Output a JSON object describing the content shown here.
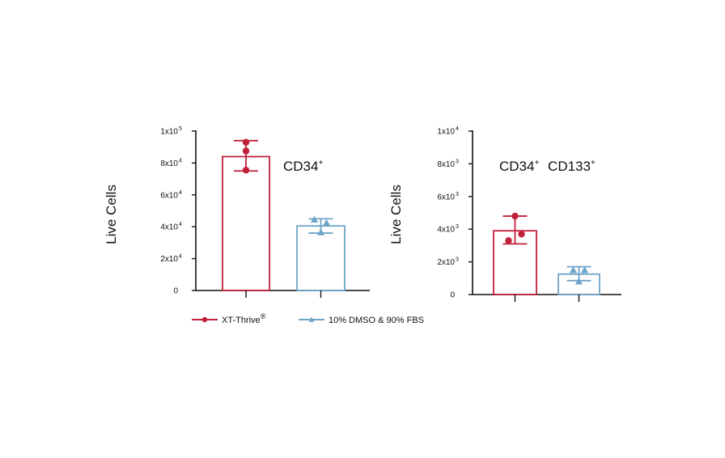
{
  "colors": {
    "xt_thrive": "#c0203a",
    "dmso_fbs": "#6fa4c8",
    "axis": "#111111"
  },
  "legend": {
    "placement": "bottom",
    "items": [
      {
        "label": "XT-Thrive",
        "superscript": "®",
        "marker": "circle",
        "color": "#c0203a"
      },
      {
        "label": "10% DMSO & 90% FBS",
        "superscript": "",
        "marker": "triangle",
        "color": "#6fa4c8"
      }
    ]
  },
  "chart_data": [
    {
      "type": "bar",
      "annotation": {
        "text": "CD34",
        "superscript": "+"
      },
      "ylabel": "Live Cells",
      "ylim": [
        0,
        100000
      ],
      "yticks": [
        {
          "value": 0,
          "mantissa": "0",
          "exponent": ""
        },
        {
          "value": 20000,
          "mantissa": "2x10",
          "exponent": "4"
        },
        {
          "value": 40000,
          "mantissa": "4x10",
          "exponent": "4"
        },
        {
          "value": 60000,
          "mantissa": "6x10",
          "exponent": "4"
        },
        {
          "value": 80000,
          "mantissa": "8x10",
          "exponent": "4"
        },
        {
          "value": 100000,
          "mantissa": "1x10",
          "exponent": "5"
        }
      ],
      "grid": false,
      "series": [
        {
          "name": "XT-Thrive®",
          "mean": 84000,
          "error": [
            75000,
            94000
          ],
          "points": [
            93000,
            87500,
            75500
          ],
          "marker": "circle",
          "color": "#c0203a"
        },
        {
          "name": "10% DMSO & 90% FBS",
          "mean": 40500,
          "error": [
            36000,
            45000
          ],
          "points": [
            44500,
            42500,
            36500
          ],
          "marker": "triangle",
          "color": "#6fa4c8"
        }
      ]
    },
    {
      "type": "bar",
      "annotation": {
        "text": "CD34",
        "superscript": "+",
        "text2": "CD133",
        "superscript2": "+"
      },
      "ylabel": "Live Cells",
      "ylim": [
        0,
        10000
      ],
      "yticks": [
        {
          "value": 0,
          "mantissa": "0",
          "exponent": ""
        },
        {
          "value": 2000,
          "mantissa": "2x10",
          "exponent": "3"
        },
        {
          "value": 4000,
          "mantissa": "4x10",
          "exponent": "3"
        },
        {
          "value": 6000,
          "mantissa": "6x10",
          "exponent": "3"
        },
        {
          "value": 8000,
          "mantissa": "8x10",
          "exponent": "3"
        },
        {
          "value": 10000,
          "mantissa": "1x10",
          "exponent": "4"
        }
      ],
      "grid": false,
      "series": [
        {
          "name": "XT-Thrive®",
          "mean": 3900,
          "error": [
            3100,
            4800
          ],
          "points": [
            4800,
            3700,
            3300
          ],
          "marker": "circle",
          "color": "#c0203a"
        },
        {
          "name": "10% DMSO & 90% FBS",
          "mean": 1250,
          "error": [
            850,
            1700
          ],
          "points": [
            1500,
            1500,
            800
          ],
          "marker": "triangle",
          "color": "#6fa4c8"
        }
      ]
    }
  ]
}
